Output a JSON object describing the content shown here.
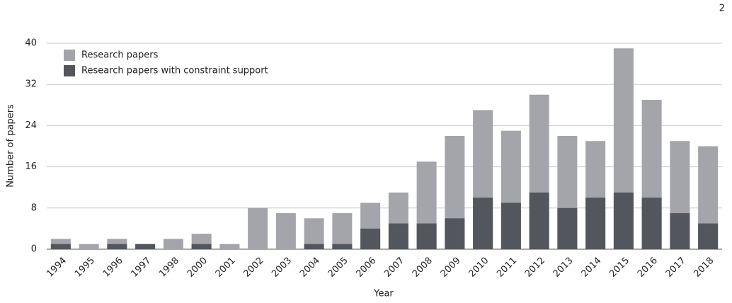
{
  "page_number": "2",
  "chart_data": {
    "type": "bar",
    "overlay": true,
    "x_label": "Year",
    "y_label": "Number of papers",
    "categories": [
      "1994",
      "1995",
      "1996",
      "1997",
      "1998",
      "2000",
      "2001",
      "2002",
      "2003",
      "2004",
      "2005",
      "2006",
      "2007",
      "2008",
      "2009",
      "2010",
      "2011",
      "2012",
      "2013",
      "2014",
      "2015",
      "2016",
      "2017",
      "2018"
    ],
    "series": [
      {
        "name": "Research papers",
        "color": "#a4a5aa",
        "values": [
          2,
          1,
          2,
          1,
          2,
          3,
          1,
          8,
          7,
          6,
          7,
          9,
          11,
          17,
          22,
          27,
          23,
          30,
          22,
          21,
          39,
          29,
          21,
          20
        ]
      },
      {
        "name": "Research papers with constraint support",
        "color": "#53565d",
        "values": [
          1,
          0,
          1,
          1,
          0,
          1,
          0,
          0,
          0,
          1,
          1,
          4,
          5,
          5,
          6,
          10,
          9,
          11,
          8,
          10,
          11,
          10,
          7,
          5
        ]
      }
    ],
    "ylim": [
      0,
      40
    ],
    "yticks": [
      0,
      8,
      16,
      24,
      32,
      40
    ],
    "grid": true,
    "legend": "upper left"
  }
}
